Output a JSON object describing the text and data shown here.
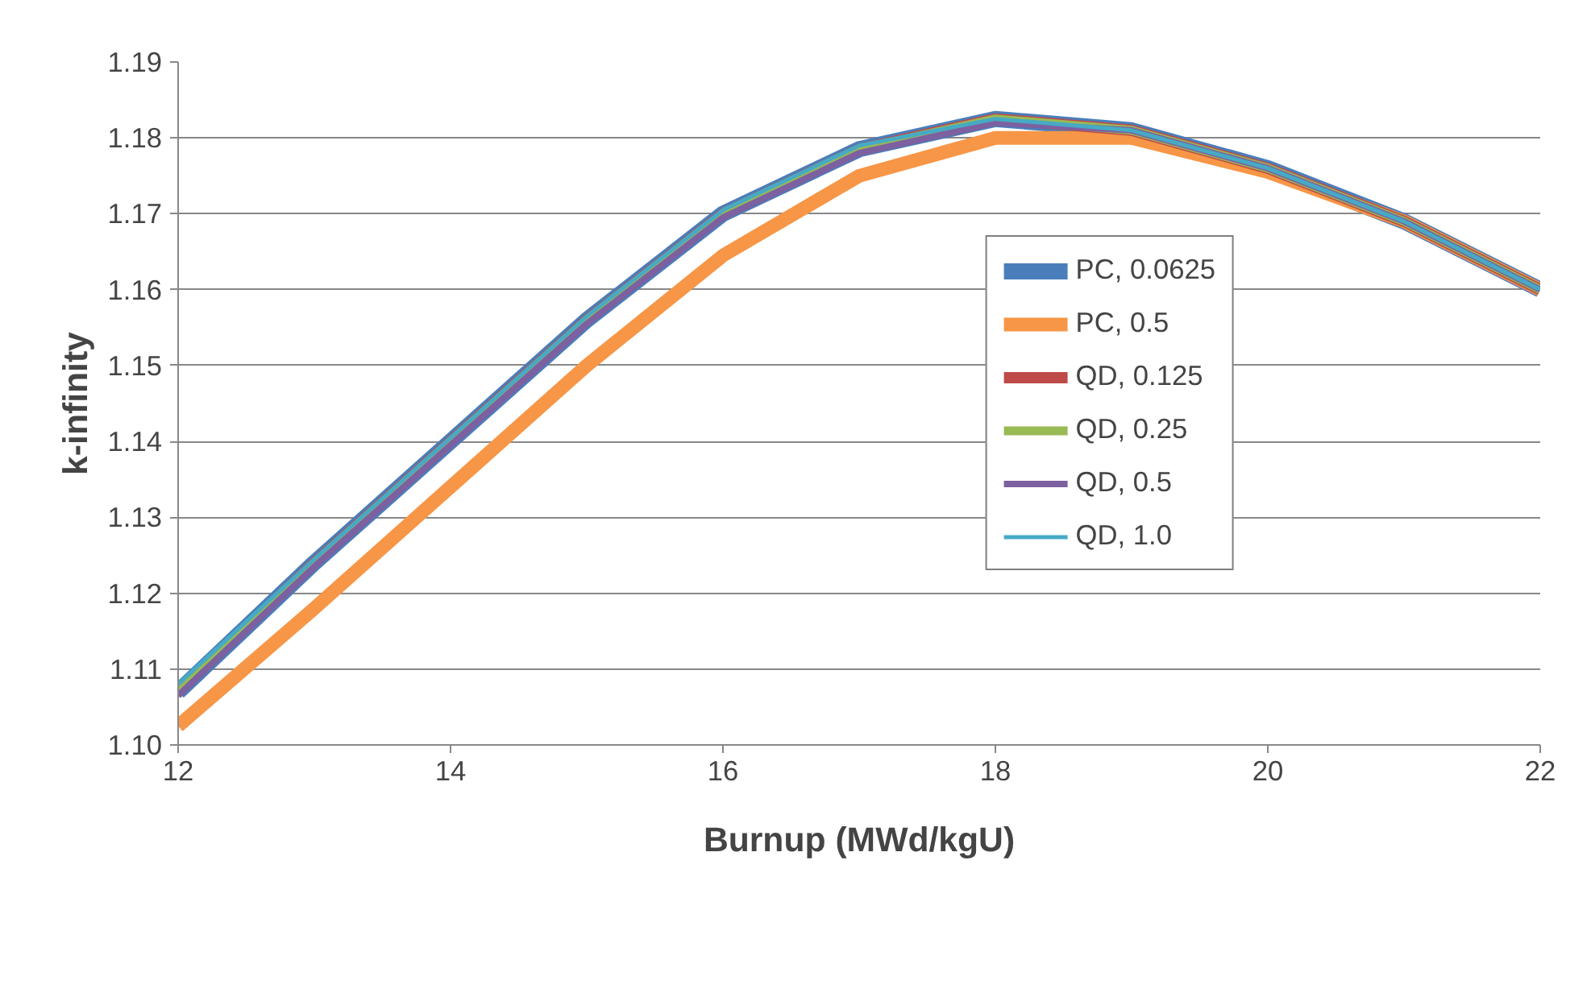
{
  "chart_data": {
    "type": "line",
    "xlabel": "Burnup (MWd/kgU)",
    "ylabel": "k-infinity",
    "x": [
      12,
      13,
      14,
      15,
      16,
      17,
      18,
      19,
      20,
      21,
      22
    ],
    "series": [
      {
        "name": "PC, 0.0625",
        "color": "#4a7ebb",
        "values": [
          1.107,
          1.124,
          1.14,
          1.156,
          1.17,
          1.1785,
          1.1825,
          1.181,
          1.176,
          1.169,
          1.16
        ]
      },
      {
        "name": "PC, 0.5",
        "color": "#f79646",
        "values": [
          1.1025,
          1.118,
          1.134,
          1.15,
          1.1645,
          1.175,
          1.18,
          1.18,
          1.1755,
          1.169,
          1.16
        ]
      },
      {
        "name": "QD, 0.125",
        "color": "#be4b48",
        "values": [
          1.107,
          1.124,
          1.14,
          1.156,
          1.17,
          1.1785,
          1.1825,
          1.181,
          1.176,
          1.169,
          1.16
        ]
      },
      {
        "name": "QD, 0.25",
        "color": "#98b954",
        "values": [
          1.107,
          1.124,
          1.14,
          1.156,
          1.17,
          1.1785,
          1.1825,
          1.181,
          1.176,
          1.169,
          1.16
        ]
      },
      {
        "name": "QD, 0.5",
        "color": "#7d60a0",
        "values": [
          1.1065,
          1.1235,
          1.1395,
          1.1555,
          1.1695,
          1.178,
          1.182,
          1.181,
          1.176,
          1.169,
          1.16
        ]
      },
      {
        "name": "QD, 1.0",
        "color": "#46aac5",
        "values": [
          1.108,
          1.1245,
          1.1405,
          1.1565,
          1.1705,
          1.179,
          1.1825,
          1.181,
          1.176,
          1.169,
          1.16
        ]
      }
    ],
    "xlim": [
      12,
      22
    ],
    "xticks": [
      12,
      14,
      16,
      18,
      20,
      22
    ],
    "ylim": [
      1.1,
      1.19
    ],
    "yticks": [
      {
        "value": 1.1,
        "label": "1.10"
      },
      {
        "value": 1.11,
        "label": "1.11"
      },
      {
        "value": 1.12,
        "label": "1.12"
      },
      {
        "value": 1.13,
        "label": "1.13"
      },
      {
        "value": 1.14,
        "label": "1.14"
      },
      {
        "value": 1.15,
        "label": "1.15"
      },
      {
        "value": 1.16,
        "label": "1.16"
      },
      {
        "value": 1.17,
        "label": "1.17"
      },
      {
        "value": 1.18,
        "label": "1.18"
      },
      {
        "value": 1.19,
        "label": "1.19"
      }
    ],
    "grid": "y",
    "legend": "right",
    "marker": "none",
    "line_style": "solid"
  }
}
